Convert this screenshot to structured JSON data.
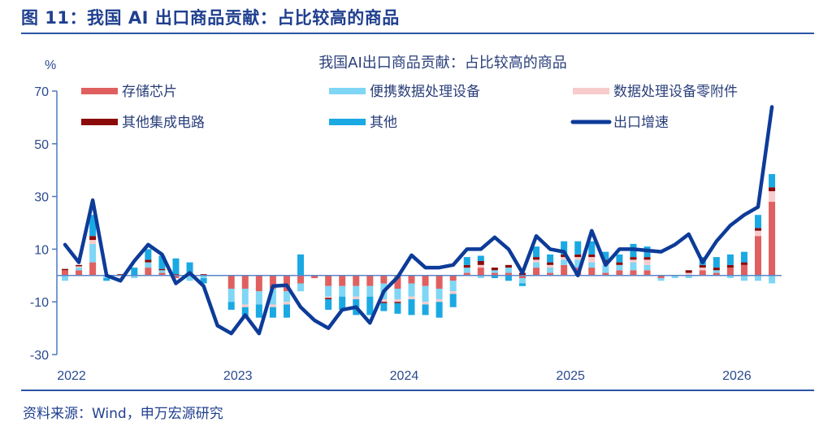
{
  "figure_title": "图 11：我国 AI 出口商品贡献：占比较高的商品",
  "source": "资料来源：Wind，申万宏源研究",
  "chart_data": {
    "type": "bar",
    "subtype": "stacked bar with line",
    "title": "我国AI出口商品贡献：占比较高的商品",
    "ylabel": "%",
    "ylim": [
      -30,
      70
    ],
    "yticks": [
      -30,
      -10,
      10,
      30,
      50,
      70
    ],
    "xticks": [
      "2022",
      "2023",
      "2024",
      "2025",
      "2026"
    ],
    "x_start": "2022-01",
    "x_end": "2026-04",
    "frequency": "monthly",
    "grid": false,
    "legend_placement": "top",
    "series": [
      {
        "name": "存储芯片",
        "kind": "bar",
        "color": "#e06060",
        "values": [
          2,
          2,
          5,
          0,
          0,
          0,
          3,
          1,
          -1,
          0,
          0,
          0,
          -5,
          -5,
          -6,
          -5,
          -6,
          -3,
          -1,
          -4,
          -4,
          -4,
          -4,
          -3,
          -5,
          -3,
          -4,
          -5,
          -2,
          1,
          3,
          1,
          1,
          -1,
          3,
          1,
          4,
          3,
          3,
          1,
          2,
          2,
          2,
          -1,
          0,
          0,
          2,
          1,
          3,
          4,
          15,
          28
        ]
      },
      {
        "name": "便携数据处理设备",
        "kind": "bar",
        "color": "#7fd6f5",
        "values": [
          -2,
          1,
          7,
          -1,
          0,
          -1,
          2,
          1,
          0,
          -2,
          -1,
          0,
          -5,
          -6,
          -5,
          -6,
          -4,
          -3,
          0,
          -4,
          -4,
          -4,
          -4,
          -6,
          -4,
          -5,
          -6,
          -4,
          -4,
          2,
          -1,
          1,
          2,
          -2,
          2,
          2,
          2,
          3,
          2,
          3,
          2,
          3,
          2,
          -1,
          -1,
          -1,
          0,
          1,
          -1,
          -2,
          -2,
          -3
        ]
      },
      {
        "name": "数据处理设备零附件",
        "kind": "bar",
        "color": "#f8cccc",
        "values": [
          0,
          0.5,
          1.5,
          0,
          0,
          0,
          0,
          0,
          0,
          0,
          0,
          0,
          0,
          -1,
          0,
          -1,
          -1,
          0,
          0,
          -0.5,
          0,
          -1,
          0,
          -1,
          -1,
          -1,
          -1,
          -1,
          -1,
          0,
          1,
          0,
          0,
          0,
          1,
          1,
          1,
          1,
          2,
          1,
          0,
          1,
          2,
          0,
          0,
          1,
          1,
          0,
          0,
          0,
          2,
          4
        ]
      },
      {
        "name": "其他集成电路",
        "kind": "bar",
        "color": "#8b0a0a",
        "values": [
          0.5,
          0.5,
          1.5,
          0,
          0.5,
          0,
          1,
          0.5,
          0.5,
          0,
          0.5,
          0,
          0,
          0,
          0,
          0,
          0,
          0,
          0,
          -0.5,
          0,
          0,
          0,
          -0.5,
          -0.5,
          0,
          0,
          0,
          0,
          1,
          1.5,
          1,
          1,
          1,
          1,
          1,
          1,
          1,
          1,
          1,
          1,
          1,
          1,
          0,
          0,
          1,
          1,
          1,
          1,
          1,
          1,
          1.5
        ]
      },
      {
        "name": "其他",
        "kind": "bar",
        "color": "#1aa9e3",
        "values": [
          0,
          0,
          8,
          -1,
          0,
          3,
          4,
          5,
          6,
          5,
          -2,
          0,
          -3,
          -4,
          -5,
          -4,
          -5,
          8,
          0,
          -4,
          -5,
          -6,
          -7,
          -3,
          -4,
          -6,
          -4,
          -6,
          -5,
          3,
          2,
          -1,
          -2,
          -1,
          4,
          3,
          5,
          5,
          5,
          3,
          3,
          5,
          4,
          0,
          0,
          0,
          3,
          4,
          4,
          4,
          5,
          5
        ]
      },
      {
        "name": "出口增速",
        "kind": "line",
        "color": "#0d3b99",
        "values": [
          11.7,
          5,
          28.6,
          0,
          -2,
          5.5,
          11.7,
          8,
          -3,
          1,
          -4,
          -19,
          -22,
          -15,
          -22,
          -4,
          -3.7,
          -12,
          -17,
          -20,
          -13,
          -12,
          -18,
          -6,
          -0.6,
          7.7,
          3,
          3,
          4,
          10,
          10,
          14.5,
          10,
          1,
          15,
          10,
          9,
          0,
          17,
          4,
          10,
          10,
          9.5,
          9,
          11.7,
          15.7,
          5,
          13,
          19,
          23,
          26,
          64
        ]
      }
    ]
  }
}
